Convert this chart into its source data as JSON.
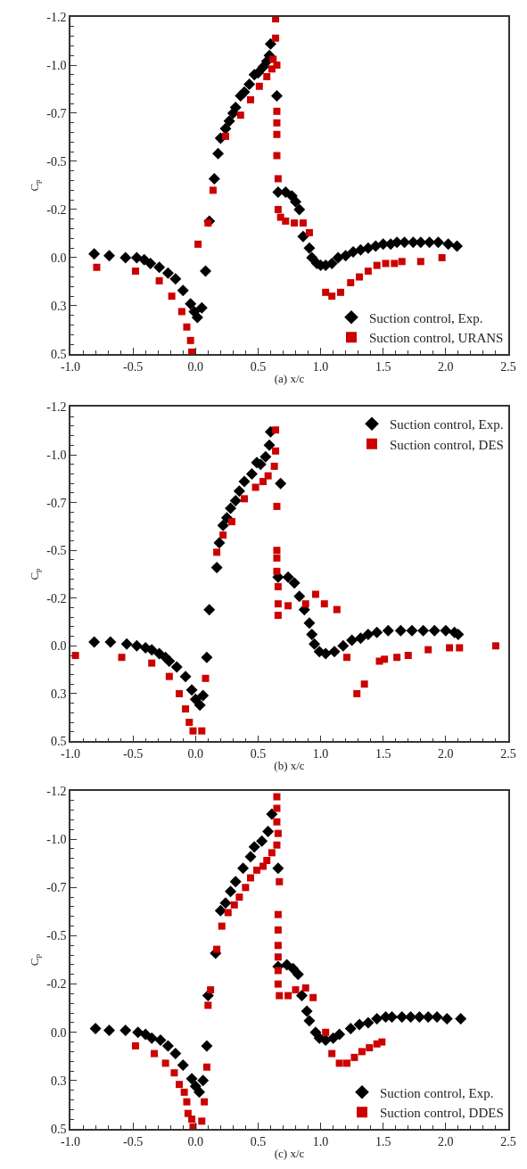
{
  "chart_data": [
    {
      "type": "scatter",
      "xlabel": "(a) x/c",
      "ylabel": "C$_{p}$",
      "xlim": [
        -1.0,
        2.5
      ],
      "xticks": [
        {
          "value": -1.0,
          "label": "-1.0"
        },
        {
          "value": -0.5,
          "label": "-0.5"
        },
        {
          "value": 0,
          "label": "0.0"
        },
        {
          "value": 0.5,
          "label": "0.5"
        },
        {
          "value": 1.0,
          "label": "1.0"
        },
        {
          "value": 1.5,
          "label": "1.5"
        },
        {
          "value": 2.0,
          "label": "2.0"
        },
        {
          "value": 2.5,
          "label": "2.5"
        }
      ],
      "ylim": [
        0.5,
        -1.25
      ],
      "yticks": [
        {
          "value": -1.25,
          "label": "-1.2"
        },
        {
          "value": -1.0,
          "label": "-1.0"
        },
        {
          "value": -0.75,
          "label": "-0.7"
        },
        {
          "value": -0.5,
          "label": "-0.5"
        },
        {
          "value": -0.25,
          "label": "-0.2"
        },
        {
          "value": 0,
          "label": "0.0"
        },
        {
          "value": 0.25,
          "label": "0.3"
        },
        {
          "value": 0.5,
          "label": "0.5"
        }
      ],
      "legend": "bottom right",
      "series": [
        {
          "name": "Suction control, Exp.",
          "color": "#000000",
          "marker": "diamond",
          "x": [
            -0.81,
            -0.69,
            -0.56,
            -0.47,
            -0.41,
            -0.36,
            -0.29,
            -0.22,
            -0.16,
            -0.1,
            -0.04,
            -0.01,
            0.015,
            0.05,
            0.08,
            0.11,
            0.15,
            0.18,
            0.2,
            0.24,
            0.27,
            0.3,
            0.32,
            0.36,
            0.39,
            0.43,
            0.47,
            0.5,
            0.54,
            0.57,
            0.59,
            0.6,
            0.65,
            0.66,
            0.72,
            0.77,
            0.8,
            0.83,
            0.86,
            0.91,
            0.93,
            0.97,
            1.0,
            1.04,
            1.09,
            1.14,
            1.2,
            1.26,
            1.32,
            1.38,
            1.44,
            1.5,
            1.56,
            1.61,
            1.67,
            1.74,
            1.8,
            1.87,
            1.94,
            2.02,
            2.09
          ],
          "values": [
            -0.02,
            -0.01,
            0.0,
            0.0,
            0.01,
            0.03,
            0.05,
            0.08,
            0.11,
            0.17,
            0.24,
            0.28,
            0.31,
            0.26,
            0.07,
            -0.19,
            -0.41,
            -0.54,
            -0.62,
            -0.67,
            -0.71,
            -0.75,
            -0.78,
            -0.84,
            -0.86,
            -0.9,
            -0.95,
            -0.96,
            -0.99,
            -1.02,
            -1.05,
            -1.11,
            -0.84,
            -0.34,
            -0.34,
            -0.32,
            -0.29,
            -0.25,
            -0.11,
            -0.05,
            0.0,
            0.03,
            0.04,
            0.04,
            0.03,
            0.0,
            -0.01,
            -0.03,
            -0.04,
            -0.05,
            -0.06,
            -0.07,
            -0.07,
            -0.08,
            -0.08,
            -0.08,
            -0.08,
            -0.08,
            -0.08,
            -0.07,
            -0.06
          ]
        },
        {
          "name": "Suction control, URANS",
          "color": "#cc0000",
          "marker": "square",
          "x": [
            -0.79,
            -0.48,
            -0.29,
            -0.19,
            -0.11,
            -0.07,
            -0.04,
            -0.03,
            0.02,
            0.1,
            0.14,
            0.24,
            0.36,
            0.44,
            0.51,
            0.57,
            0.61,
            0.62,
            0.65,
            0.64,
            0.64,
            0.65,
            0.65,
            0.65,
            0.65,
            0.66,
            0.66,
            0.68,
            0.72,
            0.79,
            0.86,
            0.91,
            1.04,
            1.09,
            1.16,
            1.24,
            1.31,
            1.38,
            1.45,
            1.52,
            1.59,
            1.65,
            1.8,
            1.97
          ],
          "values": [
            0.05,
            0.07,
            0.12,
            0.2,
            0.28,
            0.36,
            0.43,
            0.49,
            -0.07,
            -0.18,
            -0.35,
            -0.63,
            -0.74,
            -0.82,
            -0.89,
            -0.94,
            -0.98,
            -1.03,
            -1.0,
            -1.14,
            -1.24,
            -0.76,
            -0.7,
            -0.64,
            -0.53,
            -0.41,
            -0.25,
            -0.21,
            -0.19,
            -0.18,
            -0.18,
            -0.13,
            0.18,
            0.2,
            0.18,
            0.13,
            0.1,
            0.07,
            0.04,
            0.03,
            0.03,
            0.02,
            0.02,
            0.0
          ]
        }
      ]
    },
    {
      "type": "scatter",
      "xlabel": "(b) x/c",
      "ylabel": "C$_{p}$",
      "xlim": [
        -1.0,
        2.5
      ],
      "xticks": [
        {
          "value": -1.0,
          "label": "-1.0"
        },
        {
          "value": -0.5,
          "label": "-0.5"
        },
        {
          "value": 0,
          "label": "0.0"
        },
        {
          "value": 0.5,
          "label": "0.5"
        },
        {
          "value": 1.0,
          "label": "1.0"
        },
        {
          "value": 1.5,
          "label": "1.5"
        },
        {
          "value": 2.0,
          "label": "2.0"
        },
        {
          "value": 2.5,
          "label": "2.5"
        }
      ],
      "ylim": [
        0.5,
        -1.25
      ],
      "yticks": [
        {
          "value": -1.25,
          "label": "-1.2"
        },
        {
          "value": -1.0,
          "label": "-1.0"
        },
        {
          "value": -0.75,
          "label": "-0.7"
        },
        {
          "value": -0.5,
          "label": "-0.5"
        },
        {
          "value": -0.25,
          "label": "-0.2"
        },
        {
          "value": 0,
          "label": "0.0"
        },
        {
          "value": 0.25,
          "label": "0.3"
        },
        {
          "value": 0.5,
          "label": "0.5"
        }
      ],
      "legend": "top right",
      "series": [
        {
          "name": "Suction control, Exp.",
          "color": "#000000",
          "marker": "diamond",
          "x": [
            -0.81,
            -0.68,
            -0.55,
            -0.47,
            -0.4,
            -0.35,
            -0.29,
            -0.24,
            -0.21,
            -0.15,
            -0.08,
            -0.03,
            0.0,
            0.035,
            0.06,
            0.09,
            0.11,
            0.17,
            0.19,
            0.22,
            0.25,
            0.28,
            0.32,
            0.35,
            0.39,
            0.45,
            0.49,
            0.52,
            0.56,
            0.59,
            0.6,
            0.68,
            0.66,
            0.74,
            0.79,
            0.83,
            0.87,
            0.91,
            0.93,
            0.95,
            0.99,
            1.04,
            1.11,
            1.18,
            1.25,
            1.32,
            1.38,
            1.45,
            1.54,
            1.64,
            1.73,
            1.82,
            1.91,
            2.0,
            2.07,
            2.1
          ],
          "values": [
            -0.02,
            -0.02,
            -0.01,
            0.0,
            0.01,
            0.02,
            0.04,
            0.06,
            0.08,
            0.11,
            0.16,
            0.23,
            0.28,
            0.31,
            0.26,
            0.06,
            -0.19,
            -0.41,
            -0.54,
            -0.63,
            -0.67,
            -0.72,
            -0.76,
            -0.81,
            -0.86,
            -0.9,
            -0.96,
            -0.95,
            -0.99,
            -1.05,
            -1.12,
            -0.85,
            -0.36,
            -0.36,
            -0.33,
            -0.26,
            -0.19,
            -0.12,
            -0.06,
            -0.01,
            0.03,
            0.04,
            0.03,
            0.0,
            -0.03,
            -0.04,
            -0.06,
            -0.07,
            -0.08,
            -0.08,
            -0.08,
            -0.08,
            -0.08,
            -0.08,
            -0.07,
            -0.06
          ]
        },
        {
          "name": "Suction control, DES",
          "color": "#cc0000",
          "marker": "square",
          "x": [
            -0.96,
            -0.59,
            -0.35,
            -0.21,
            -0.13,
            -0.08,
            -0.05,
            -0.02,
            0.05,
            0.08,
            0.17,
            0.22,
            0.29,
            0.39,
            0.48,
            0.54,
            0.58,
            0.63,
            0.64,
            0.64,
            0.65,
            0.65,
            0.65,
            0.65,
            0.66,
            0.66,
            0.66,
            0.74,
            0.88,
            0.96,
            1.03,
            1.13,
            1.21,
            1.29,
            1.35,
            1.47,
            1.51,
            1.61,
            1.7,
            1.86,
            2.03,
            2.11,
            2.4
          ],
          "values": [
            0.05,
            0.06,
            0.09,
            0.16,
            0.25,
            0.33,
            0.4,
            0.445,
            0.445,
            0.17,
            -0.49,
            -0.58,
            -0.65,
            -0.77,
            -0.83,
            -0.86,
            -0.89,
            -0.94,
            -1.02,
            -1.13,
            -0.73,
            -0.5,
            -0.46,
            -0.39,
            -0.31,
            -0.22,
            -0.16,
            -0.21,
            -0.22,
            -0.27,
            -0.22,
            -0.19,
            0.06,
            0.25,
            0.2,
            0.08,
            0.07,
            0.06,
            0.05,
            0.02,
            0.01,
            0.01,
            0.0
          ]
        }
      ]
    },
    {
      "type": "scatter",
      "xlabel": "(c) x/c",
      "ylabel": "C$_{p}$",
      "xlim": [
        -1.0,
        2.5
      ],
      "xticks": [
        {
          "value": -1.0,
          "label": "-1.0"
        },
        {
          "value": -0.5,
          "label": "-0.5"
        },
        {
          "value": 0,
          "label": "0.0"
        },
        {
          "value": 0.5,
          "label": "0.5"
        },
        {
          "value": 1.0,
          "label": "1.0"
        },
        {
          "value": 1.5,
          "label": "1.5"
        },
        {
          "value": 2.0,
          "label": "2.0"
        },
        {
          "value": 2.5,
          "label": "2.5"
        }
      ],
      "ylim": [
        0.5,
        -1.25
      ],
      "yticks": [
        {
          "value": -1.25,
          "label": "-1.2"
        },
        {
          "value": -1.0,
          "label": "-1.0"
        },
        {
          "value": -0.75,
          "label": "-0.7"
        },
        {
          "value": -0.5,
          "label": "-0.5"
        },
        {
          "value": -0.25,
          "label": "-0.2"
        },
        {
          "value": 0,
          "label": "0.0"
        },
        {
          "value": 0.25,
          "label": "0.3"
        },
        {
          "value": 0.5,
          "label": "0.5"
        }
      ],
      "legend": "bottom right",
      "series": [
        {
          "name": "Suction control, Exp.",
          "color": "#000000",
          "marker": "diamond",
          "x": [
            -0.8,
            -0.69,
            -0.56,
            -0.46,
            -0.4,
            -0.35,
            -0.28,
            -0.22,
            -0.16,
            -0.1,
            -0.03,
            0.0,
            0.03,
            0.06,
            0.09,
            0.1,
            0.16,
            0.2,
            0.24,
            0.28,
            0.32,
            0.38,
            0.44,
            0.47,
            0.53,
            0.58,
            0.61,
            0.66,
            0.66,
            0.73,
            0.78,
            0.82,
            0.85,
            0.89,
            0.91,
            0.96,
            0.99,
            1.04,
            1.1,
            1.15,
            1.24,
            1.31,
            1.38,
            1.45,
            1.52,
            1.57,
            1.65,
            1.72,
            1.79,
            1.86,
            1.93,
            2.01,
            2.12
          ],
          "values": [
            -0.02,
            -0.01,
            -0.01,
            0.0,
            0.01,
            0.03,
            0.04,
            0.07,
            0.11,
            0.17,
            0.24,
            0.28,
            0.31,
            0.25,
            0.07,
            -0.19,
            -0.41,
            -0.63,
            -0.67,
            -0.73,
            -0.78,
            -0.85,
            -0.91,
            -0.96,
            -0.99,
            -1.04,
            -1.13,
            -0.85,
            -0.34,
            -0.35,
            -0.33,
            -0.3,
            -0.19,
            -0.11,
            -0.06,
            0.0,
            0.03,
            0.04,
            0.03,
            0.01,
            -0.02,
            -0.04,
            -0.05,
            -0.07,
            -0.08,
            -0.08,
            -0.08,
            -0.08,
            -0.08,
            -0.08,
            -0.08,
            -0.07,
            -0.07
          ]
        },
        {
          "name": "Suction control, DDES",
          "color": "#cc0000",
          "marker": "square",
          "x": [
            -0.48,
            -0.33,
            -0.24,
            -0.17,
            -0.13,
            -0.09,
            -0.07,
            -0.06,
            -0.03,
            -0.02,
            0.05,
            0.07,
            0.09,
            0.1,
            0.12,
            0.17,
            0.21,
            0.26,
            0.31,
            0.35,
            0.4,
            0.44,
            0.49,
            0.54,
            0.57,
            0.61,
            0.65,
            0.66,
            0.65,
            0.65,
            0.65,
            0.67,
            0.66,
            0.66,
            0.66,
            0.66,
            0.66,
            0.66,
            0.67,
            0.74,
            0.8,
            0.88,
            0.94,
            1.04,
            1.09,
            1.15,
            1.21,
            1.27,
            1.33,
            1.39,
            1.45,
            1.49
          ],
          "values": [
            0.07,
            0.11,
            0.16,
            0.21,
            0.27,
            0.31,
            0.36,
            0.42,
            0.45,
            0.49,
            0.46,
            0.36,
            0.18,
            -0.14,
            -0.22,
            -0.43,
            -0.55,
            -0.62,
            -0.66,
            -0.7,
            -0.75,
            -0.8,
            -0.84,
            -0.86,
            -0.89,
            -0.93,
            -0.97,
            -1.03,
            -1.09,
            -1.16,
            -1.22,
            -0.78,
            -0.61,
            -0.53,
            -0.45,
            -0.39,
            -0.32,
            -0.25,
            -0.19,
            -0.19,
            -0.22,
            -0.23,
            -0.18,
            0.0,
            0.11,
            0.16,
            0.16,
            0.13,
            0.1,
            0.08,
            0.06,
            0.05
          ]
        }
      ]
    }
  ]
}
